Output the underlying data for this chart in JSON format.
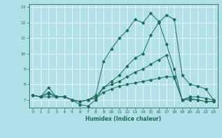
{
  "xlabel": "Humidex (Indice chaleur)",
  "ylabel": "",
  "background_color": "#b2e0e8",
  "grid_color": "#ffffff",
  "line_color": "#1a6b5a",
  "xlim": [
    -0.5,
    23.5
  ],
  "ylim": [
    6.5,
    13.2
  ],
  "yticks": [
    7,
    8,
    9,
    10,
    11,
    12,
    13
  ],
  "xticks": [
    0,
    1,
    2,
    3,
    4,
    5,
    6,
    7,
    8,
    9,
    10,
    11,
    12,
    13,
    14,
    15,
    16,
    17,
    18,
    19,
    20,
    21,
    22,
    23
  ],
  "series": [
    [
      7.3,
      7.2,
      7.8,
      7.2,
      7.2,
      7.0,
      6.7,
      6.6,
      7.0,
      7.8,
      8.2,
      8.6,
      9.2,
      9.7,
      10.0,
      11.2,
      12.0,
      12.5,
      12.2,
      8.6,
      8.0,
      7.9,
      7.7,
      7.0
    ],
    [
      7.3,
      7.2,
      7.2,
      7.2,
      7.2,
      7.0,
      6.9,
      7.0,
      7.3,
      9.5,
      10.3,
      11.0,
      11.5,
      12.2,
      12.0,
      12.6,
      12.1,
      10.6,
      9.0,
      7.0,
      7.2,
      7.2,
      7.1,
      7.0
    ],
    [
      7.3,
      7.2,
      7.5,
      7.2,
      7.2,
      7.0,
      6.9,
      7.0,
      7.2,
      7.8,
      8.0,
      8.2,
      8.5,
      8.8,
      9.0,
      9.3,
      9.6,
      9.9,
      8.4,
      7.0,
      7.1,
      7.0,
      6.9,
      6.9
    ],
    [
      7.3,
      7.2,
      7.4,
      7.2,
      7.2,
      7.0,
      6.9,
      7.0,
      7.1,
      7.5,
      7.7,
      7.9,
      8.0,
      8.1,
      8.2,
      8.3,
      8.4,
      8.5,
      8.5,
      7.0,
      7.0,
      7.0,
      6.9,
      6.9
    ]
  ]
}
